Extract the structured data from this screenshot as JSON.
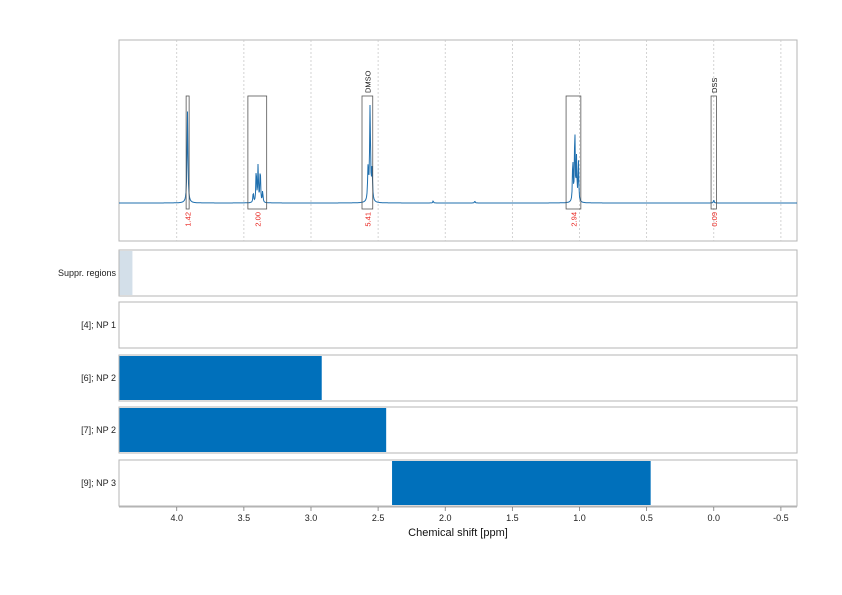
{
  "chart_data": {
    "type": "line",
    "xlabel": "Chemical shift [ppm]",
    "x_reversed": true,
    "xlim": [
      4.43,
      -0.62
    ],
    "x_ticks": [
      "4.0",
      "3.5",
      "3.0",
      "2.5",
      "2.0",
      "1.5",
      "1.0",
      "0.5",
      "0.0",
      "-0.5"
    ],
    "x_tick_values": [
      4.0,
      3.5,
      3.0,
      2.5,
      2.0,
      1.5,
      1.0,
      0.5,
      0.0,
      -0.5
    ],
    "grid": true,
    "spectrum_color": "#1f6fae",
    "spectrum_peaks": [
      {
        "ppm": 3.92,
        "height": 0.85,
        "width": 0.004
      },
      {
        "ppm": 3.408,
        "height": 0.33,
        "width": 0.003
      },
      {
        "ppm": 3.394,
        "height": 0.35,
        "width": 0.003
      },
      {
        "ppm": 3.378,
        "height": 0.34,
        "width": 0.003
      },
      {
        "ppm": 3.43,
        "height": 0.1,
        "width": 0.003
      },
      {
        "ppm": 3.36,
        "height": 0.11,
        "width": 0.003
      },
      {
        "ppm": 2.56,
        "height": 0.88,
        "width": 0.004
      },
      {
        "ppm": 2.575,
        "height": 0.3,
        "width": 0.004
      },
      {
        "ppm": 2.545,
        "height": 0.28,
        "width": 0.004
      },
      {
        "ppm": 1.035,
        "height": 0.73,
        "width": 0.003
      },
      {
        "ppm": 1.022,
        "height": 0.4,
        "width": 0.003
      },
      {
        "ppm": 1.008,
        "height": 0.38,
        "width": 0.003
      },
      {
        "ppm": 1.05,
        "height": 0.43,
        "width": 0.003
      },
      {
        "ppm": 2.09,
        "height": 0.02,
        "width": 0.003
      },
      {
        "ppm": 1.78,
        "height": 0.018,
        "width": 0.003
      },
      {
        "ppm": 0.0,
        "height": 0.03,
        "width": 0.003
      }
    ],
    "integration_regions": [
      {
        "from": 3.93,
        "to": 3.91,
        "value": "1.42"
      },
      {
        "from": 3.47,
        "to": 3.33,
        "value": "2.00"
      },
      {
        "from": 2.62,
        "to": 2.54,
        "value": "5.41"
      },
      {
        "from": 1.1,
        "to": 0.99,
        "value": "2.94"
      },
      {
        "from": 0.02,
        "to": -0.02,
        "value": "0.09"
      }
    ],
    "peak_annotations": [
      {
        "ppm": 2.58,
        "label": "DMSO"
      },
      {
        "ppm": 0.0,
        "label": "DSS"
      }
    ],
    "tracks": [
      {
        "label": "Suppr. regions",
        "color": "#d3dfe9",
        "bars": [
          {
            "from": 4.43,
            "to": 4.33
          }
        ]
      },
      {
        "label": "[4]; NP 1",
        "color": "#0070bb",
        "bars": []
      },
      {
        "label": "[6]; NP 2",
        "color": "#0070bb",
        "bars": [
          {
            "from": 4.43,
            "to": 2.92
          }
        ]
      },
      {
        "label": "[7]; NP 2",
        "color": "#0070bb",
        "bars": [
          {
            "from": 4.43,
            "to": 2.44
          }
        ]
      },
      {
        "label": "[9]; NP 3",
        "color": "#0070bb",
        "bars": [
          {
            "from": 2.4,
            "to": 0.47
          }
        ]
      }
    ]
  }
}
